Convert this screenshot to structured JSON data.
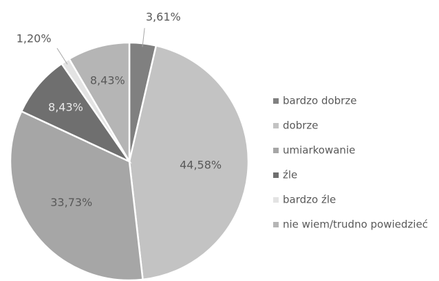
{
  "chart_data": {
    "type": "pie",
    "categories": [
      "bardzo dobrze",
      "dobrze",
      "umiarkowanie",
      "źle",
      "bardzo źle",
      "nie wiem/trudno powiedzieć"
    ],
    "values": [
      3.61,
      44.58,
      33.73,
      8.43,
      1.2,
      8.43
    ],
    "value_labels": [
      "3,61%",
      "44,58%",
      "33,73%",
      "8,43%",
      "1,20%",
      "8,43%"
    ],
    "colors": [
      "#808080",
      "#c3c3c3",
      "#a6a6a6",
      "#6f6f6f",
      "#e3e3e3",
      "#b5b5b5"
    ],
    "legend": "right"
  }
}
